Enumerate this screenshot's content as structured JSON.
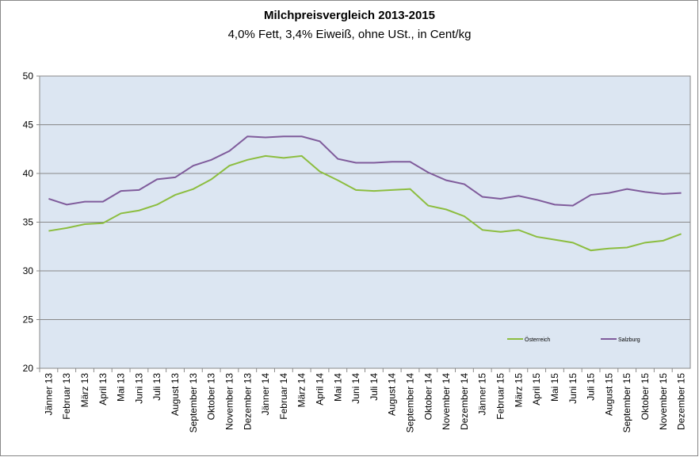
{
  "chart_data": {
    "type": "line",
    "title": "Milchpreisvergleich 2013-2015",
    "subtitle": "4,0% Fett, 3,4% Eiweiß, ohne USt., in Cent/kg",
    "categories": [
      "Jänner 13",
      "Februar 13",
      "März 13",
      "April 13",
      "Mai 13",
      "Juni 13",
      "Juli 13",
      "August 13",
      "September 13",
      "Oktober 13",
      "November 13",
      "Dezember 13",
      "Jänner 14",
      "Februar 14",
      "März 14",
      "April 14",
      "Mai 14",
      "Juni 14",
      "Juli 14",
      "August 14",
      "September 14",
      "Oktober 14",
      "November 14",
      "Dezember 14",
      "Jänner 15",
      "Februar 15",
      "März 15",
      "April 15",
      "Mai 15",
      "Juni 15",
      "Juli 15",
      "August 15",
      "September 15",
      "Oktober 15",
      "November 15",
      "Dezember 15"
    ],
    "series": [
      {
        "name": "Österreich",
        "color": "#8cbd3f",
        "values": [
          34.1,
          34.4,
          34.8,
          34.9,
          35.9,
          36.2,
          36.8,
          37.8,
          38.4,
          39.4,
          40.8,
          41.4,
          41.8,
          41.6,
          41.8,
          40.2,
          39.3,
          38.3,
          38.2,
          38.3,
          38.4,
          36.7,
          36.3,
          35.6,
          34.2,
          34.0,
          34.2,
          33.5,
          33.2,
          32.9,
          32.1,
          32.3,
          32.4,
          32.9,
          33.1,
          33.8
        ]
      },
      {
        "name": "Salzburg",
        "color": "#7f5b9b",
        "values": [
          37.4,
          36.8,
          37.1,
          37.1,
          38.2,
          38.3,
          39.4,
          39.6,
          40.8,
          41.4,
          42.3,
          43.8,
          43.7,
          43.8,
          43.8,
          43.3,
          41.5,
          41.1,
          41.1,
          41.2,
          41.2,
          40.1,
          39.3,
          38.9,
          37.6,
          37.4,
          37.7,
          37.3,
          36.8,
          36.7,
          37.8,
          38.0,
          38.4,
          38.1,
          37.9,
          38.0
        ]
      }
    ],
    "ylim": [
      20,
      50
    ],
    "yticks": [
      20,
      25,
      30,
      35,
      40,
      45,
      50
    ],
    "grid": true,
    "legend": "lower right"
  }
}
